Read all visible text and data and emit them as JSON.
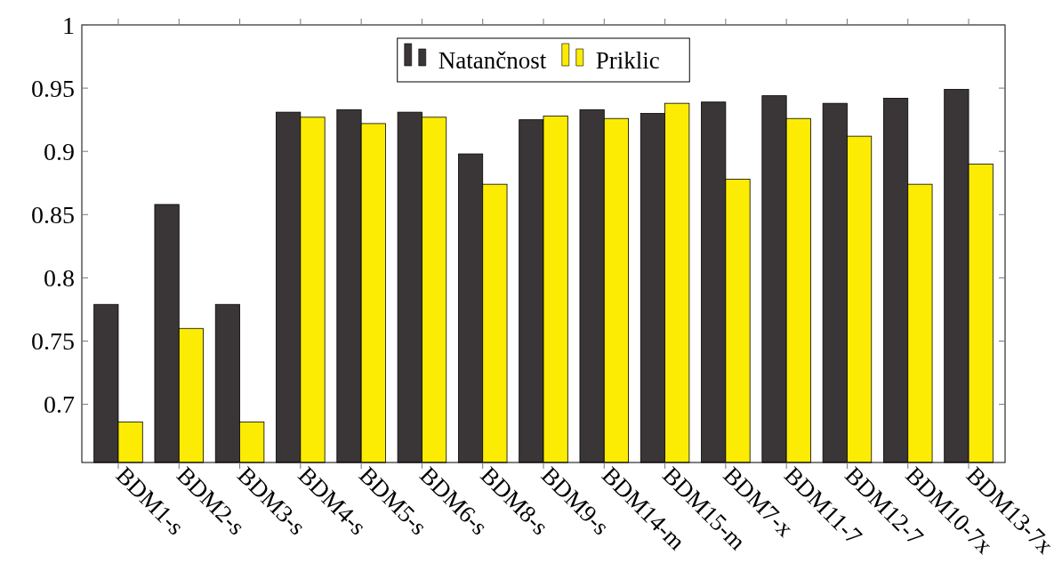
{
  "chart_data": {
    "type": "bar",
    "categories": [
      "BDM1-s",
      "BDM2-s",
      "BDM3-s",
      "BDM4-s",
      "BDM5-s",
      "BDM6-s",
      "BDM8-s",
      "BDM9-s",
      "BDM14-m",
      "BDM15-m",
      "BDM7-x",
      "BDM11-7",
      "BDM12-7",
      "BDM10-7x",
      "BDM13-7x"
    ],
    "series": [
      {
        "name": "Natančnost",
        "color": "#3a3536",
        "values": [
          0.779,
          0.858,
          0.779,
          0.931,
          0.933,
          0.931,
          0.898,
          0.925,
          0.933,
          0.93,
          0.939,
          0.944,
          0.938,
          0.942,
          0.949
        ]
      },
      {
        "name": "Priklic",
        "color": "#fcec04",
        "values": [
          0.686,
          0.76,
          0.686,
          0.927,
          0.922,
          0.927,
          0.874,
          0.928,
          0.926,
          0.938,
          0.878,
          0.926,
          0.912,
          0.874,
          0.89
        ]
      }
    ],
    "ylim": [
      0.654,
      1
    ],
    "yticks": [
      0.7,
      0.75,
      0.8,
      0.85,
      0.9,
      0.95,
      1
    ],
    "legend": "top",
    "grid": false
  }
}
